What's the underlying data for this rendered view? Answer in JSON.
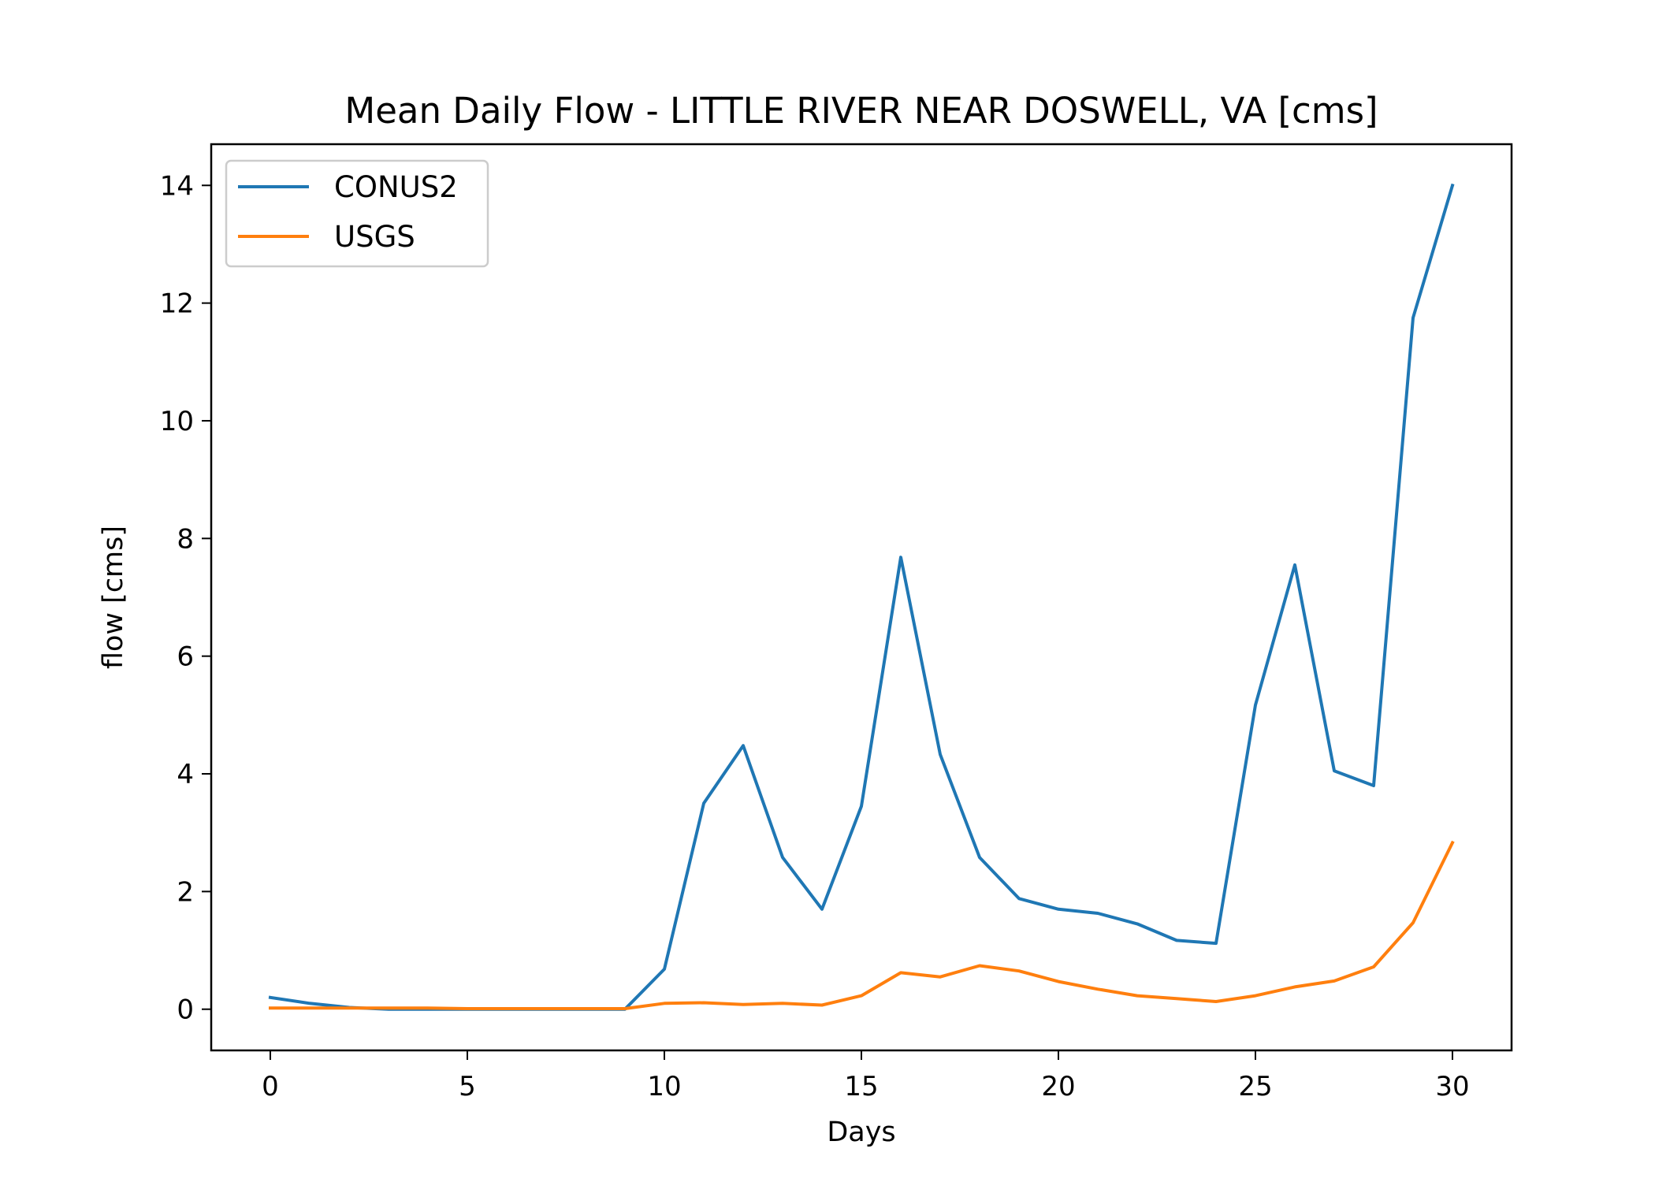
{
  "chart_data": {
    "type": "line",
    "title": "Mean Daily Flow - LITTLE RIVER NEAR DOSWELL, VA [cms]",
    "xlabel": "Days",
    "ylabel": "flow [cms]",
    "xlim": [
      -1.5,
      31.5
    ],
    "ylim": [
      -0.7,
      14.7
    ],
    "xticks": [
      0,
      5,
      10,
      15,
      20,
      25,
      30
    ],
    "yticks": [
      0,
      2,
      4,
      6,
      8,
      10,
      12,
      14
    ],
    "grid": false,
    "legend_position": "top-left",
    "x": [
      0,
      1,
      2,
      3,
      4,
      5,
      6,
      7,
      8,
      9,
      10,
      11,
      12,
      13,
      14,
      15,
      16,
      17,
      18,
      19,
      20,
      21,
      22,
      23,
      24,
      25,
      26,
      27,
      28,
      29,
      30
    ],
    "series": [
      {
        "name": "CONUS2",
        "color": "#1f77b4",
        "values": [
          0.2,
          0.1,
          0.03,
          0,
          0,
          0,
          0,
          0,
          0,
          0,
          0.68,
          3.5,
          4.48,
          2.58,
          1.7,
          3.45,
          7.68,
          4.33,
          2.58,
          1.88,
          1.7,
          1.63,
          1.45,
          1.17,
          1.12,
          5.17,
          7.55,
          4.05,
          3.8,
          11.75,
          14.0
        ]
      },
      {
        "name": "USGS",
        "color": "#ff7f0e",
        "values": [
          0.02,
          0.02,
          0.02,
          0.02,
          0.02,
          0.01,
          0.01,
          0.01,
          0.01,
          0.01,
          0.1,
          0.11,
          0.08,
          0.1,
          0.07,
          0.23,
          0.62,
          0.55,
          0.74,
          0.65,
          0.47,
          0.34,
          0.23,
          0.18,
          0.13,
          0.23,
          0.38,
          0.48,
          0.72,
          1.47,
          2.83
        ]
      }
    ]
  }
}
